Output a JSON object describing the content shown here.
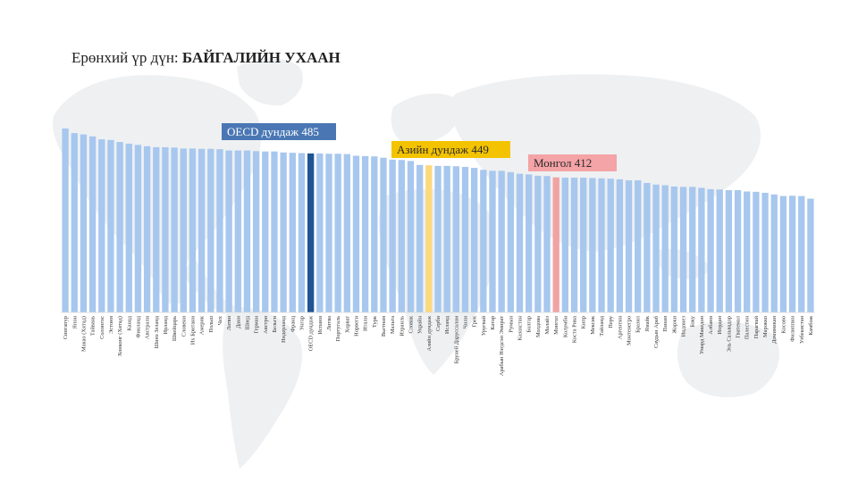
{
  "title": {
    "prefix": "Ерөнхий үр дүн: ",
    "subject": "БАЙГАЛИЙН УХААН"
  },
  "colors": {
    "bar": "#a7c7ee",
    "oecd_bar": "#1f5495",
    "asia_bar": "#fcd97e",
    "mongolia_bar": "#f1a3a3",
    "oecd_label_bg": "#4a77b4",
    "asia_label_bg": "#f4c300",
    "mongolia_label_bg": "#f4a3a6",
    "map": "#eef0f2"
  },
  "callouts": {
    "oecd": "OECD дундаж 485",
    "asia": "Азийн дундаж 449",
    "mongolia": "Монгол 412"
  },
  "chart_data": {
    "type": "bar",
    "categories": [
      "Сингапур",
      "Япон",
      "Макао (Хятад)",
      "Тайвань",
      "Солонгос",
      "Эстони",
      "Хонконг (Хятад)",
      "Канад",
      "Финланд",
      "Австрали",
      "Шинэ Зеланд",
      "Ирланд",
      "Швейцарь",
      "Словени",
      "Их Британи",
      "Америк",
      "Польш",
      "Чех",
      "Латви",
      "Дани",
      "Швед",
      "Герман",
      "Австри",
      "Бельги",
      "Нидерланд",
      "Франц",
      "Унгар",
      "OECD дундаж",
      "Испани",
      "Литва",
      "Португаль",
      "Хорват",
      "Норвеги",
      "Итали",
      "Турк",
      "Вьетнам",
      "Мальта",
      "Израиль",
      "Словак",
      "Украйн",
      "Азийн дундаж",
      "Серби",
      "Исланд",
      "Бруней Даруссалам",
      "Чили",
      "Грек",
      "Уругвай",
      "Катар",
      "Арабын Нэгдсэн Эмират",
      "Румын",
      "Казахстан",
      "Болгар",
      "Молдова",
      "Малайз",
      "Монгол",
      "Колумби",
      "Коста Рика",
      "Кипр",
      "Мексик",
      "Тайланд",
      "Перу",
      "Аргентин",
      "Монтенегро",
      "Бразил",
      "Ямайк",
      "Саудын Араб",
      "Панам",
      "Жоржи",
      "Индонез",
      "Баку",
      "Умард Македон",
      "Албани",
      "Иордан",
      "Эль Сальвадор",
      "Гватемал",
      "Палестин",
      "Парагвай",
      "Марокко",
      "Доминикан",
      "Косово",
      "Филиппин",
      "Узбекистан",
      "Камбож"
    ],
    "values": [
      561,
      547,
      543,
      537,
      528,
      526,
      520,
      515,
      511,
      507,
      504,
      504,
      503,
      500,
      500,
      499,
      499,
      498,
      494,
      494,
      494,
      492,
      491,
      491,
      488,
      487,
      486,
      485,
      485,
      484,
      484,
      483,
      478,
      477,
      476,
      472,
      466,
      465,
      462,
      450,
      449,
      447,
      447,
      446,
      444,
      441,
      435,
      432,
      432,
      428,
      423,
      421,
      417,
      416,
      412,
      411,
      411,
      411,
      410,
      409,
      408,
      406,
      403,
      403,
      395,
      390,
      388,
      384,
      383,
      383,
      380,
      376,
      375,
      373,
      373,
      369,
      368,
      365,
      360,
      355,
      356,
      355,
      347
    ],
    "highlights": {
      "OECD дундаж": "oecd",
      "Азийн дундаж": "asia",
      "Монгол": "mongolia"
    },
    "ylim": [
      0,
      561
    ]
  }
}
